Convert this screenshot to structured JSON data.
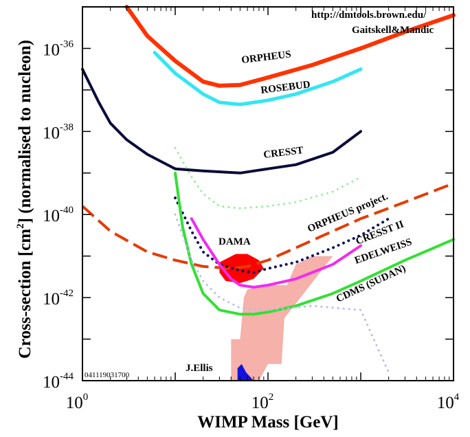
{
  "chart_data": {
    "type": "line",
    "xlabel": "WIMP Mass [GeV]",
    "ylabel_prefix": "Cross-section [cm",
    "ylabel_sup": "2",
    "ylabel_suffix": "] (normalised to nucleon)",
    "x_scale": "log",
    "y_scale": "log",
    "xlim": [
      1,
      10000
    ],
    "ylim": [
      1e-44,
      1e-35
    ],
    "x_ticks": [
      {
        "base": "10",
        "exp": "0"
      },
      {
        "base": "10",
        "exp": "2"
      },
      {
        "base": "10",
        "exp": "4"
      }
    ],
    "y_ticks": [
      {
        "base": "10",
        "exp": "-36"
      },
      {
        "base": "10",
        "exp": "-38"
      },
      {
        "base": "10",
        "exp": "-40"
      },
      {
        "base": "10",
        "exp": "-42"
      },
      {
        "base": "10",
        "exp": "-44"
      }
    ],
    "annotations": {
      "url": "http://dmtools.brown.edu/",
      "authors": "Gaitskell&Mandic",
      "code": "041119031700",
      "author_label": "J.Ellis"
    },
    "series": [
      {
        "name": "ORPHEUS",
        "color": "#ff3300",
        "style": "solid",
        "width": 6,
        "x": [
          3,
          5,
          10,
          20,
          30,
          50,
          100,
          300,
          1000,
          3000,
          10000
        ],
        "y": [
          -35.0,
          -35.7,
          -36.3,
          -36.8,
          -36.9,
          -36.88,
          -36.7,
          -36.4,
          -36.0,
          -35.6,
          -35.2
        ]
      },
      {
        "name": "ROSEBUD",
        "color": "#33e6f2",
        "style": "solid",
        "width": 5,
        "x": [
          6,
          10,
          20,
          30,
          50,
          100,
          200,
          500,
          1000
        ],
        "y": [
          -36.1,
          -36.6,
          -37.1,
          -37.3,
          -37.35,
          -37.25,
          -37.1,
          -36.8,
          -36.5
        ]
      },
      {
        "name": "CRESST",
        "color": "#0b0b3a",
        "style": "solid",
        "width": 4,
        "x": [
          1,
          1.5,
          2,
          3,
          5,
          10,
          20,
          50,
          100,
          200,
          500,
          1000
        ],
        "y": [
          -36.5,
          -37.3,
          -37.8,
          -38.2,
          -38.55,
          -38.9,
          -38.95,
          -39.0,
          -38.9,
          -38.8,
          -38.5,
          -38.0
        ]
      },
      {
        "name": "ORPHEUS project.",
        "color": "#e63b00",
        "style": "dashed",
        "width": 4,
        "x": [
          1,
          2,
          5,
          10,
          20,
          40,
          60,
          100,
          200,
          500,
          1000,
          3000,
          10000
        ],
        "y": [
          -39.8,
          -40.4,
          -40.9,
          -41.1,
          -41.25,
          -41.3,
          -41.25,
          -41.1,
          -40.8,
          -40.4,
          -40.1,
          -39.7,
          -39.25
        ]
      },
      {
        "name": "CRESST II",
        "color": "#0b1460",
        "style": "dotted",
        "width": 4,
        "x": [
          10,
          15,
          20,
          30,
          50,
          70,
          100,
          200,
          500,
          1000,
          2000
        ],
        "y": [
          -39.6,
          -40.4,
          -40.9,
          -41.2,
          -41.35,
          -41.4,
          -41.3,
          -41.15,
          -40.8,
          -40.5,
          -40.1
        ]
      },
      {
        "name": "EDELWEISS",
        "color": "#f02cf0",
        "style": "solid",
        "width": 4,
        "x": [
          15,
          20,
          30,
          40,
          50,
          70,
          100,
          200,
          500,
          1000
        ],
        "y": [
          -40.1,
          -40.6,
          -41.2,
          -41.55,
          -41.7,
          -41.75,
          -41.7,
          -41.55,
          -41.2,
          -40.75
        ]
      },
      {
        "name": "CDMS (SUDAN)",
        "color": "#33e033",
        "style": "solid",
        "width": 4,
        "x": [
          10,
          12,
          15,
          20,
          30,
          50,
          70,
          100,
          200,
          500,
          1000,
          3000,
          10000
        ],
        "y": [
          -39.0,
          -40.3,
          -41.2,
          -41.9,
          -42.3,
          -42.4,
          -42.4,
          -42.35,
          -42.2,
          -41.9,
          -41.6,
          -41.1,
          -40.6
        ]
      },
      {
        "name": "",
        "color": "#99ee99",
        "style": "dotted",
        "width": 3,
        "x": [
          10,
          15,
          20,
          30,
          50,
          100,
          200,
          500,
          1000
        ],
        "y": [
          -38.4,
          -39.1,
          -39.5,
          -39.8,
          -39.85,
          -39.8,
          -39.7,
          -39.45,
          -39.1
        ]
      },
      {
        "name": "",
        "color": "#b8b8f5",
        "style": "dotted",
        "width": 3,
        "x": [
          10,
          15,
          20,
          30,
          50,
          100,
          300,
          1000,
          2000
        ],
        "y": [
          -40.0,
          -41.1,
          -41.6,
          -42.0,
          -42.25,
          -42.3,
          -42.2,
          -42.3,
          -43.8
        ]
      }
    ],
    "regions": [
      {
        "name": "DAMA",
        "color": "#ff0000",
        "points": [
          [
            30,
            -41.15
          ],
          [
            45,
            -40.95
          ],
          [
            60,
            -40.95
          ],
          [
            80,
            -41.1
          ],
          [
            90,
            -41.3
          ],
          [
            70,
            -41.55
          ],
          [
            50,
            -41.65
          ],
          [
            35,
            -41.6
          ],
          [
            30,
            -41.4
          ]
        ]
      },
      {
        "name": "",
        "color": "#f5b1aa",
        "points": [
          [
            40,
            -43.0
          ],
          [
            50,
            -43.0
          ],
          [
            55,
            -42.0
          ],
          [
            60,
            -41.8
          ],
          [
            100,
            -41.7
          ],
          [
            160,
            -41.7
          ],
          [
            200,
            -41.2
          ],
          [
            300,
            -41.0
          ],
          [
            400,
            -41.0
          ],
          [
            500,
            -41.0
          ],
          [
            150,
            -42.5
          ],
          [
            140,
            -43.6
          ],
          [
            100,
            -43.6
          ],
          [
            80,
            -44.0
          ],
          [
            40,
            -44.0
          ]
        ]
      },
      {
        "name": "",
        "color": "#1212e0",
        "points": [
          [
            47,
            -43.7
          ],
          [
            52,
            -43.6
          ],
          [
            58,
            -43.8
          ],
          [
            70,
            -44.0
          ],
          [
            47,
            -44.0
          ]
        ]
      }
    ]
  }
}
